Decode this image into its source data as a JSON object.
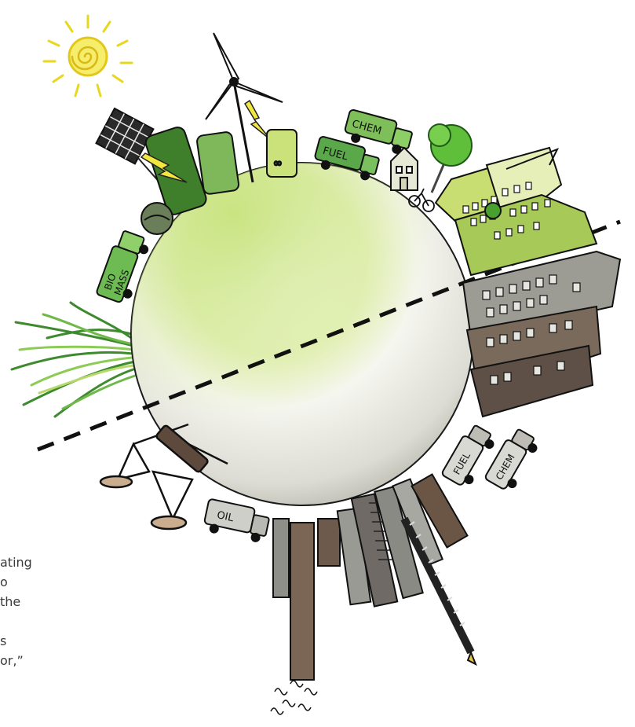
{
  "illustration": {
    "subject": "hand-drawn globe divided by a dashed line: renewable energy, green industry and vegetation on the top half; fossil fuel industry, oil pumps and smokestacks on the bottom half",
    "vehicle_labels": {
      "biomass": [
        "BIO",
        "MASS"
      ],
      "chem_top": "CHEM",
      "fuel_top": "FUEL",
      "oil": "OIL",
      "fuel_bottom": "FUEL",
      "chem_bottom": "CHEM"
    },
    "colors": {
      "globe_light": "#f4f9e4",
      "globe_green": "#cbe58c",
      "globe_grey": "#c9c9c2",
      "green_dark": "#3f7f2c",
      "green_mid": "#6aa84f",
      "green_light": "#b8d96a",
      "sun": "#f2e640",
      "industry_grey": "#8a8a84",
      "industry_brown": "#6b5646",
      "outline": "#1a1a1a"
    },
    "icons": [
      "sun-icon",
      "solar-panel-icon",
      "wind-turbine-icon",
      "lightning-icon",
      "truck-icon",
      "tree-icon",
      "city-icon",
      "oil-pump-icon",
      "smokestack-icon",
      "grass-icon"
    ]
  },
  "caption": {
    "lines": [
      "ating",
      "o",
      "the",
      "",
      "s",
      "or,”"
    ]
  }
}
